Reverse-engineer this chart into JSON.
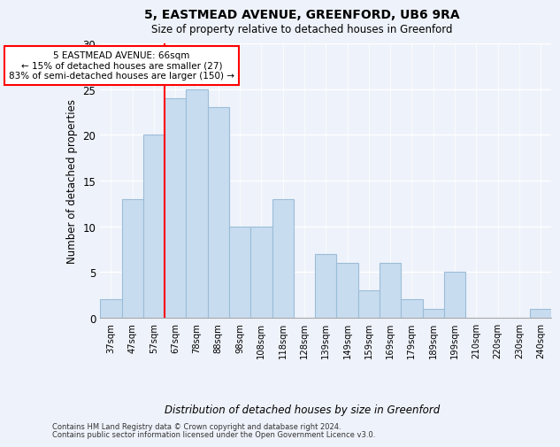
{
  "title1": "5, EASTMEAD AVENUE, GREENFORD, UB6 9RA",
  "title2": "Size of property relative to detached houses in Greenford",
  "xlabel": "Distribution of detached houses by size in Greenford",
  "ylabel": "Number of detached properties",
  "categories": [
    "37sqm",
    "47sqm",
    "57sqm",
    "67sqm",
    "78sqm",
    "88sqm",
    "98sqm",
    "108sqm",
    "118sqm",
    "128sqm",
    "139sqm",
    "149sqm",
    "159sqm",
    "169sqm",
    "179sqm",
    "189sqm",
    "199sqm",
    "210sqm",
    "220sqm",
    "230sqm",
    "240sqm"
  ],
  "values": [
    2,
    13,
    20,
    24,
    25,
    23,
    10,
    10,
    13,
    0,
    7,
    6,
    3,
    6,
    2,
    1,
    5,
    0,
    0,
    0,
    1
  ],
  "bar_color": "#c8dcf0",
  "bar_edge_color": "#9bbdd8",
  "annotation_title": "5 EASTMEAD AVENUE: 66sqm",
  "annotation_line2": "← 15% of detached houses are smaller (27)",
  "annotation_line3": "83% of semi-detached houses are larger (150) →",
  "ylim": [
    0,
    30
  ],
  "yticks": [
    0,
    5,
    10,
    15,
    20,
    25,
    30
  ],
  "footer1": "Contains HM Land Registry data © Crown copyright and database right 2024.",
  "footer2": "Contains public sector information licensed under the Open Government Licence v3.0.",
  "bg_color": "#eef2fa"
}
